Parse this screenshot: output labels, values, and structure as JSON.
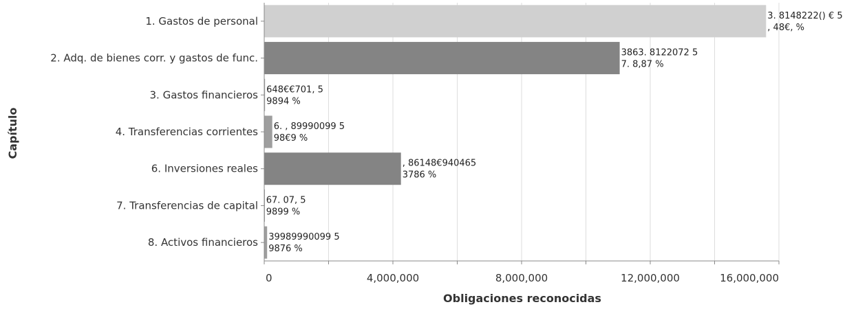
{
  "chart_data": {
    "type": "bar",
    "orientation": "horizontal",
    "xlabel": "Obligaciones reconocidas",
    "ylabel": "Capítulo",
    "xlim": [
      0,
      16000000
    ],
    "xticks": [
      0,
      4000000,
      8000000,
      12000000,
      16000000
    ],
    "xtick_labels": [
      "0",
      "4,000,000",
      "8,000,000",
      "12,000,000",
      "16,000,000"
    ],
    "grid": true,
    "categories": [
      "1. Gastos de personal",
      "2. Adq. de bienes corr. y gastos de func.",
      "3. Gastos financieros",
      "4. Transferencias corrientes",
      "6. Inversiones reales",
      "7. Transferencias de capital",
      "8. Activos financieros"
    ],
    "values": [
      15600000,
      11050000,
      25000,
      250000,
      4250000,
      15000,
      90000
    ],
    "colors": [
      "#d0d0d0",
      "#848484",
      "#9e9e9e",
      "#9e9e9e",
      "#848484",
      "#9e9e9e",
      "#9e9e9e"
    ],
    "data_labels": [
      [
        "3. 8148222() € 5",
        ", 48€, %"
      ],
      [
        "3863. 8122072 5",
        "7. 8,87 %"
      ],
      [
        "648€€701, 5",
        "9894 %"
      ],
      [
        "6. , 89990099 5",
        "98€9 %"
      ],
      [
        ", 86148€940465",
        "3786 %"
      ],
      [
        "67. 07, 5",
        "9899 %"
      ],
      [
        "39989990099 5",
        "9876 %"
      ]
    ]
  }
}
